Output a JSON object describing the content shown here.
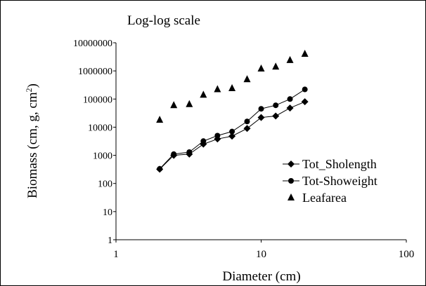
{
  "chart_data": {
    "type": "scatter",
    "title": "Log-log scale",
    "xlabel": "Diameter (cm)",
    "ylabel": "Biomass (cm, g, cm",
    "ylabel_sup": "2",
    "ylabel_tail": ")",
    "x_scale": "log",
    "y_scale": "log",
    "xlim": [
      1,
      100
    ],
    "ylim": [
      1,
      10000000
    ],
    "x_ticks": [
      1,
      10,
      100
    ],
    "x_tick_labels": [
      "1",
      "10",
      "100"
    ],
    "y_ticks": [
      1,
      10,
      100,
      1000,
      10000,
      100000,
      1000000,
      10000000
    ],
    "y_tick_labels": [
      "1",
      "10",
      "100",
      "1000",
      "10000",
      "100000",
      "1000000",
      "10000000"
    ],
    "grid": false,
    "legend_position": "right",
    "series": [
      {
        "name": "Tot_Sholength",
        "marker": "diamond",
        "line": true,
        "x": [
          2,
          2.5,
          3.2,
          4,
          5,
          6.3,
          8,
          10,
          12.6,
          15.8,
          20
        ],
        "y": [
          320,
          1000,
          1100,
          2500,
          3800,
          4800,
          9000,
          22000,
          25000,
          48000,
          80000
        ]
      },
      {
        "name": "Tot-Showeight",
        "marker": "circle",
        "line": true,
        "x": [
          2,
          2.5,
          3.2,
          4,
          5,
          6.3,
          8,
          10,
          12.6,
          15.8,
          20
        ],
        "y": [
          330,
          1100,
          1300,
          3200,
          5000,
          7000,
          16000,
          45000,
          60000,
          100000,
          220000
        ]
      },
      {
        "name": "Leafarea",
        "marker": "triangle",
        "line": false,
        "x": [
          2,
          2.5,
          3.2,
          4,
          5,
          6.3,
          8,
          10,
          12.6,
          15.8,
          20
        ],
        "y": [
          18000,
          60000,
          65000,
          140000,
          220000,
          240000,
          500000,
          1200000,
          1400000,
          2400000,
          4000000
        ]
      }
    ]
  }
}
